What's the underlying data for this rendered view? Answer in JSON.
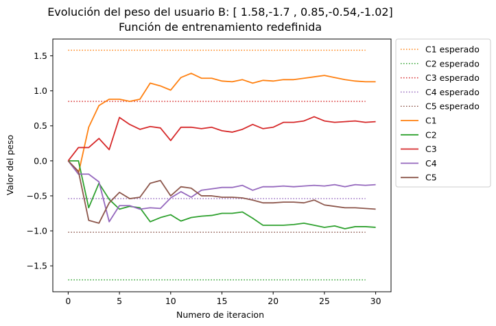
{
  "chart_data": {
    "type": "line",
    "title": "Evolución del peso del usuario B: [ 1.58,-1.7 , 0.85,-0.54,-1.02]",
    "subtitle": "Función de entrenamiento redefinida",
    "xlabel": "Numero de iteracion",
    "ylabel": "Valor del peso",
    "xlim": [
      -1.5,
      31.5
    ],
    "ylim": [
      -1.87,
      1.74
    ],
    "xticks": [
      0,
      5,
      10,
      15,
      20,
      25,
      30
    ],
    "yticks": [
      -1.5,
      -1.0,
      -0.5,
      0.0,
      0.5,
      1.0,
      1.5
    ],
    "ytick_labels": [
      "−1.5",
      "−1.0",
      "−0.5",
      "0.0",
      "0.5",
      "1.0",
      "1.5"
    ],
    "grid": false,
    "legend_position": "outside-right",
    "expected": [
      {
        "name": "C1 esperado",
        "value": 1.58,
        "x_range": [
          0,
          29
        ],
        "color": "#ff7f0e"
      },
      {
        "name": "C2 esperado",
        "value": -1.7,
        "x_range": [
          0,
          29
        ],
        "color": "#2ca02c"
      },
      {
        "name": "C3 esperado",
        "value": 0.85,
        "x_range": [
          0,
          29
        ],
        "color": "#d62728"
      },
      {
        "name": "C4 esperado",
        "value": -0.54,
        "x_range": [
          0,
          29
        ],
        "color": "#9467bd"
      },
      {
        "name": "C5 esperado",
        "value": -1.02,
        "x_range": [
          0,
          29
        ],
        "color": "#8c564b"
      }
    ],
    "x": [
      0,
      1,
      2,
      3,
      4,
      5,
      6,
      7,
      8,
      9,
      10,
      11,
      12,
      13,
      14,
      15,
      16,
      17,
      18,
      19,
      20,
      21,
      22,
      23,
      24,
      25,
      26,
      27,
      28,
      29,
      30
    ],
    "series": [
      {
        "name": "C1",
        "color": "#ff7f0e",
        "values": [
          0.0,
          -0.18,
          0.48,
          0.79,
          0.88,
          0.88,
          0.85,
          0.88,
          1.11,
          1.07,
          1.01,
          1.19,
          1.25,
          1.18,
          1.18,
          1.14,
          1.13,
          1.16,
          1.11,
          1.15,
          1.14,
          1.16,
          1.16,
          1.18,
          1.2,
          1.22,
          1.19,
          1.16,
          1.14,
          1.13,
          1.13
        ]
      },
      {
        "name": "C2",
        "color": "#2ca02c",
        "values": [
          0.0,
          0.0,
          -0.67,
          -0.32,
          -0.55,
          -0.69,
          -0.65,
          -0.67,
          -0.87,
          -0.81,
          -0.77,
          -0.86,
          -0.81,
          -0.79,
          -0.78,
          -0.75,
          -0.75,
          -0.73,
          -0.82,
          -0.92,
          -0.92,
          -0.92,
          -0.91,
          -0.89,
          -0.92,
          -0.95,
          -0.93,
          -0.97,
          -0.94,
          -0.94,
          -0.95
        ]
      },
      {
        "name": "C3",
        "color": "#d62728",
        "values": [
          0.0,
          0.19,
          0.19,
          0.32,
          0.16,
          0.62,
          0.52,
          0.45,
          0.49,
          0.47,
          0.29,
          0.48,
          0.48,
          0.46,
          0.48,
          0.43,
          0.41,
          0.45,
          0.52,
          0.46,
          0.48,
          0.55,
          0.55,
          0.57,
          0.63,
          0.57,
          0.55,
          0.56,
          0.57,
          0.55,
          0.56
        ]
      },
      {
        "name": "C4",
        "color": "#9467bd",
        "values": [
          0.0,
          -0.19,
          -0.19,
          -0.3,
          -0.87,
          -0.64,
          -0.64,
          -0.69,
          -0.67,
          -0.68,
          -0.53,
          -0.44,
          -0.52,
          -0.42,
          -0.4,
          -0.38,
          -0.38,
          -0.35,
          -0.42,
          -0.37,
          -0.37,
          -0.36,
          -0.37,
          -0.36,
          -0.35,
          -0.36,
          -0.34,
          -0.37,
          -0.34,
          -0.35,
          -0.34
        ]
      },
      {
        "name": "C5",
        "color": "#8c564b",
        "values": [
          0.0,
          -0.15,
          -0.85,
          -0.89,
          -0.6,
          -0.45,
          -0.54,
          -0.52,
          -0.32,
          -0.28,
          -0.5,
          -0.37,
          -0.39,
          -0.5,
          -0.5,
          -0.52,
          -0.52,
          -0.53,
          -0.56,
          -0.6,
          -0.6,
          -0.59,
          -0.59,
          -0.6,
          -0.56,
          -0.63,
          -0.65,
          -0.67,
          -0.67,
          -0.68,
          -0.69
        ]
      }
    ]
  }
}
